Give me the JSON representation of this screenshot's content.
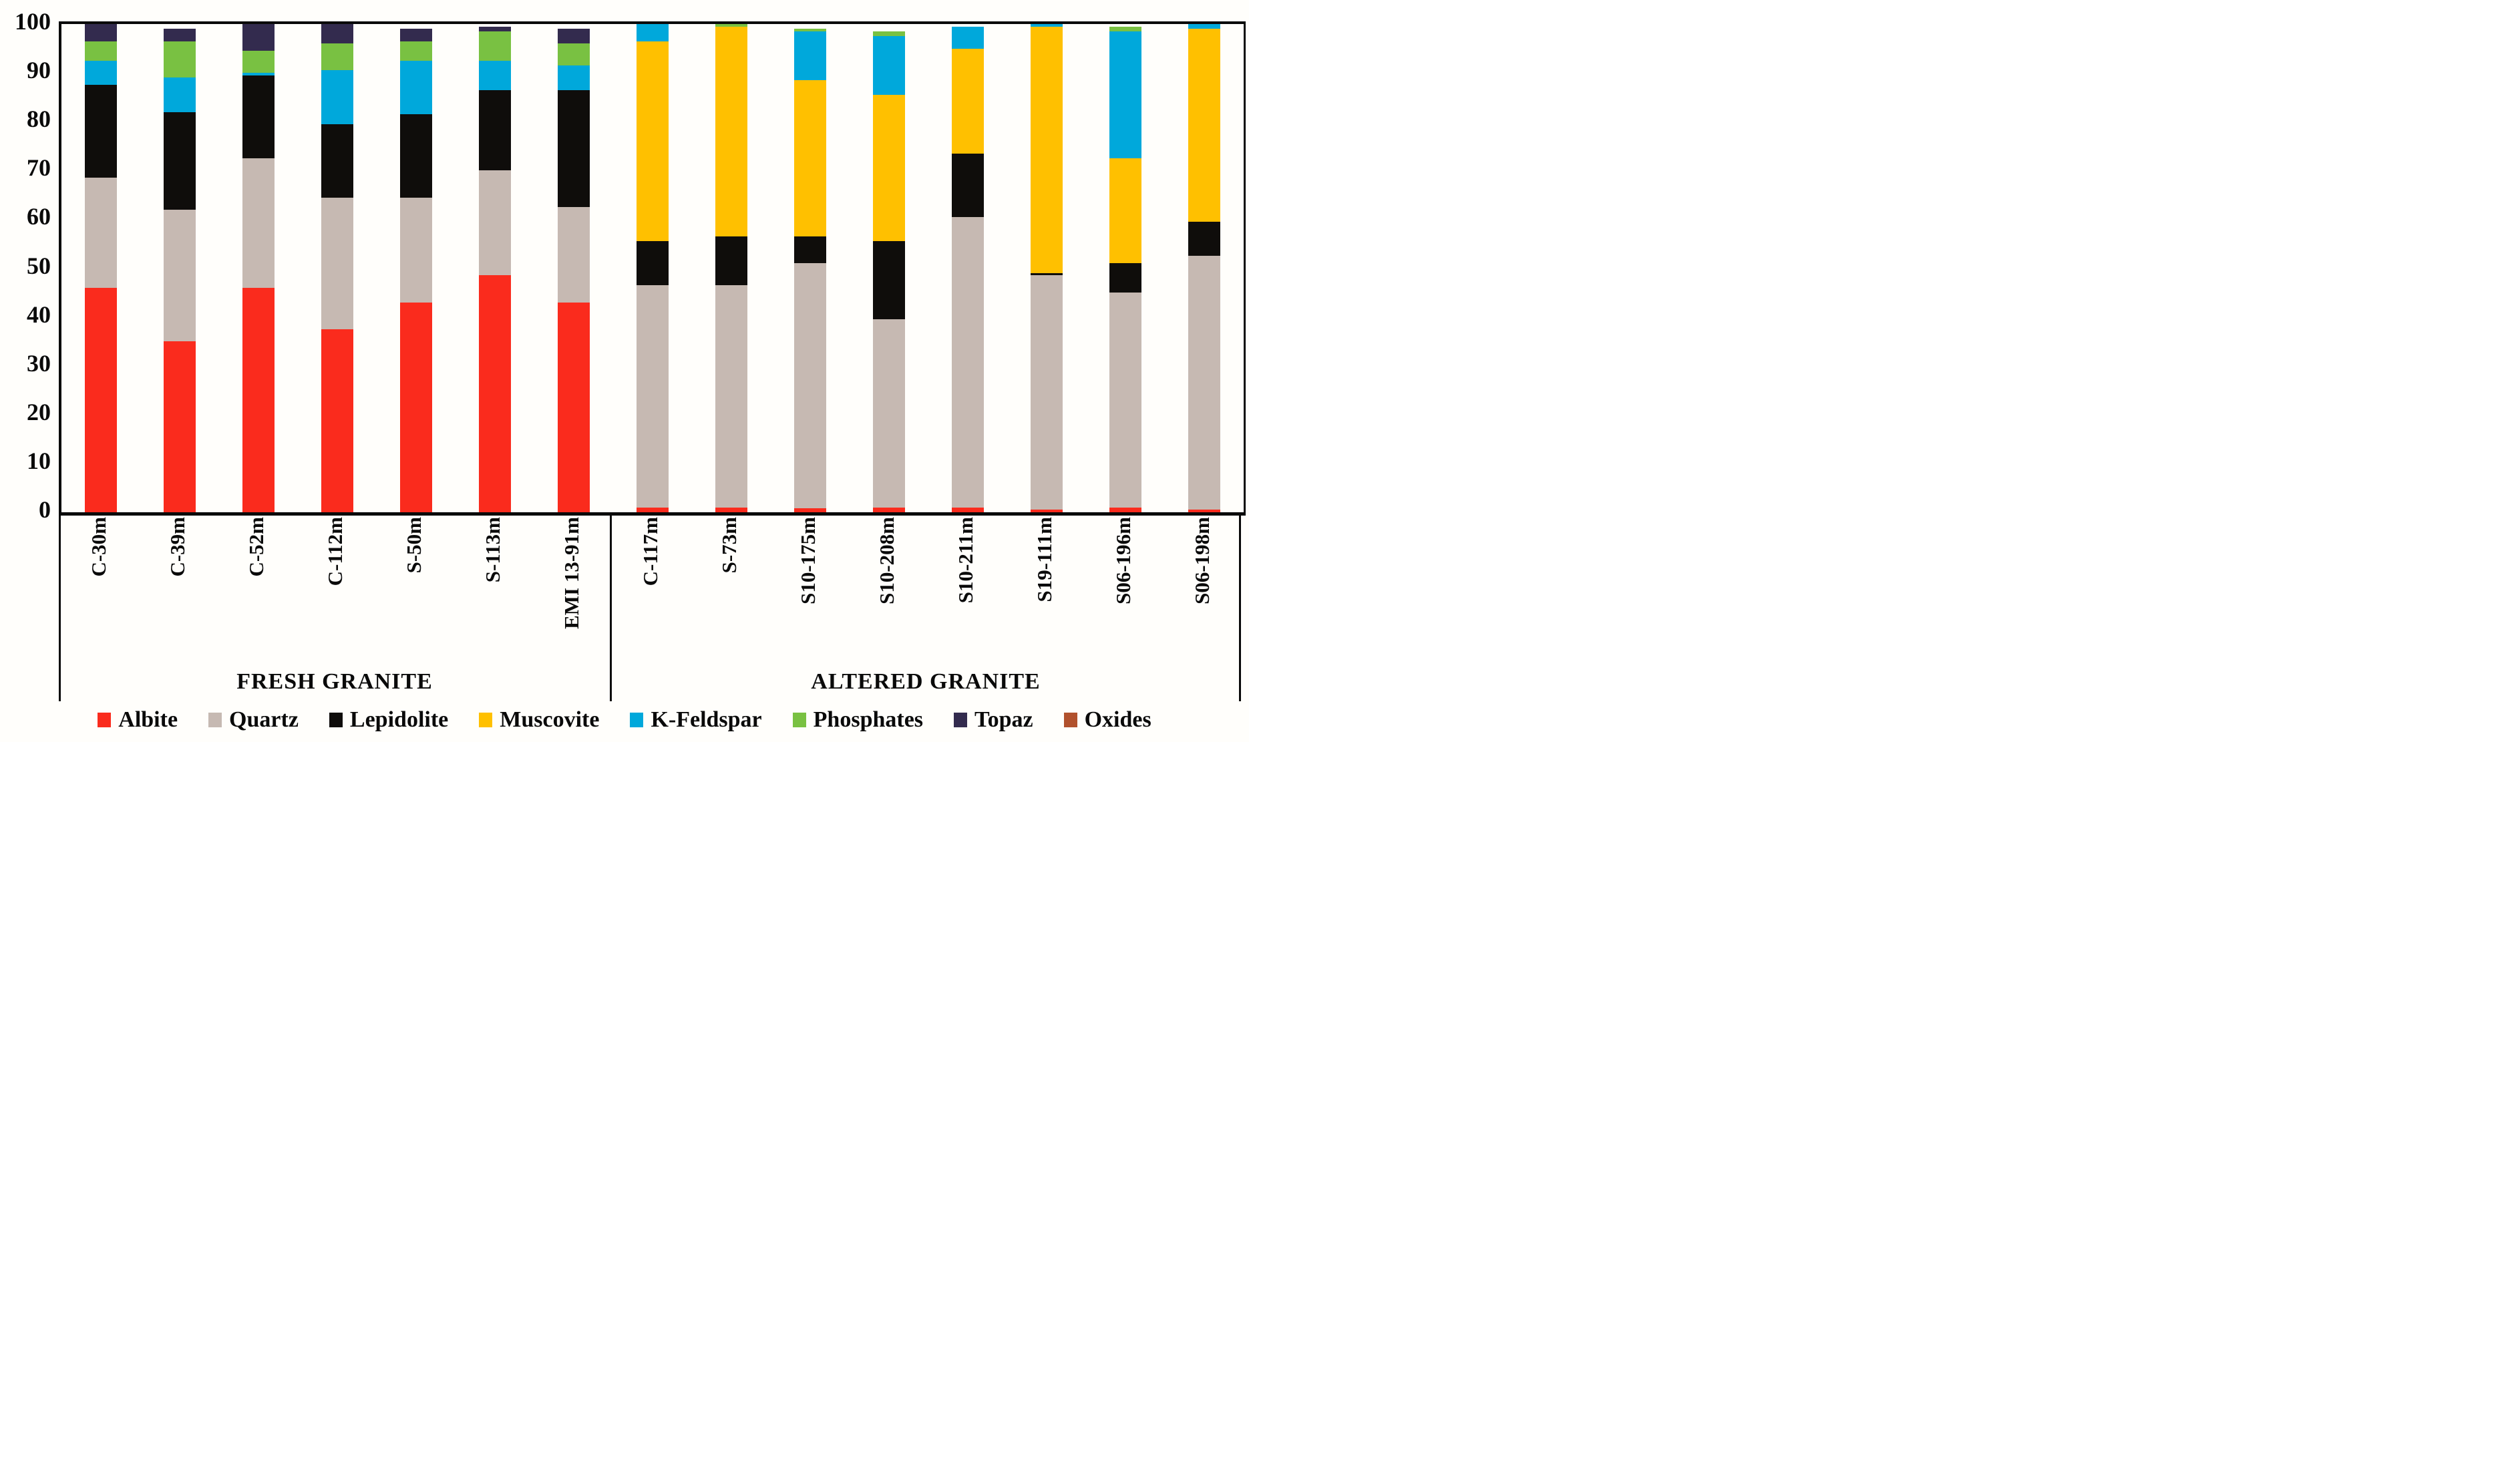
{
  "page": {
    "background": "#fffefb",
    "axis_color": "#0a0a0a"
  },
  "chart_data": {
    "type": "bar",
    "stacked": true,
    "title": "",
    "xlabel": "",
    "ylabel": "",
    "ylim": [
      0,
      100
    ],
    "yticks": [
      0,
      10,
      20,
      30,
      40,
      50,
      60,
      70,
      80,
      90,
      100
    ],
    "grid": false,
    "legend_position": "bottom",
    "bar_label_rotation": -90,
    "categories": [
      "C-30m",
      "C-39m",
      "C-52m",
      "C-112m",
      "S-50m",
      "S-113m",
      "EMI 13-91m",
      "C-117m",
      "S-73m",
      "S10-175m",
      "S10-208m",
      "S10-211m",
      "S19-111m",
      "S06-196m",
      "S06-198m"
    ],
    "groups": [
      {
        "label": "FRESH GRANITE",
        "count": 7
      },
      {
        "label": "ALTERED GRANITE",
        "count": 8
      }
    ],
    "series": [
      {
        "name": "Albite",
        "color": "#fa2b1d",
        "values": [
          46,
          35,
          46,
          37.5,
          43,
          48.5,
          43,
          1,
          1,
          0.8,
          1,
          1,
          0.5,
          1,
          0.5
        ]
      },
      {
        "name": "Quartz",
        "color": "#c6b9b2",
        "values": [
          22.5,
          27,
          26.5,
          27,
          21.5,
          21.5,
          19.5,
          45.5,
          45.5,
          50.2,
          38.5,
          59.5,
          48,
          44,
          52
        ]
      },
      {
        "name": "Lepidolite",
        "color": "#0f0d0b",
        "values": [
          19,
          20,
          17,
          15,
          17,
          16.5,
          24,
          9,
          10,
          5.5,
          16,
          13,
          0.5,
          6,
          7
        ]
      },
      {
        "name": "Muscovite",
        "color": "#ffc000",
        "values": [
          0,
          0,
          0,
          0,
          0,
          0,
          0,
          41,
          43,
          32,
          30,
          21.5,
          50.5,
          21.5,
          39.5
        ]
      },
      {
        "name": "K-Feldspar",
        "color": "#00a8db",
        "values": [
          5,
          7,
          0.5,
          11,
          11,
          6,
          5,
          3.5,
          0,
          10,
          12,
          4.5,
          0.5,
          26,
          1
        ]
      },
      {
        "name": "Phosphates",
        "color": "#79c142",
        "values": [
          4,
          7.5,
          4.5,
          5.5,
          4,
          6,
          4.5,
          0,
          0.5,
          0.5,
          1,
          0,
          0,
          1,
          0
        ]
      },
      {
        "name": "Topaz",
        "color": "#332b4e",
        "values": [
          3.5,
          2.5,
          5.5,
          4,
          2.5,
          1,
          3,
          0,
          0,
          0,
          0,
          0,
          0,
          0,
          0
        ]
      },
      {
        "name": "Oxides",
        "color": "#b1512d",
        "values": [
          0,
          0,
          0,
          0,
          0,
          0,
          0,
          0,
          0,
          0,
          0,
          0,
          0,
          0,
          0
        ]
      }
    ]
  }
}
